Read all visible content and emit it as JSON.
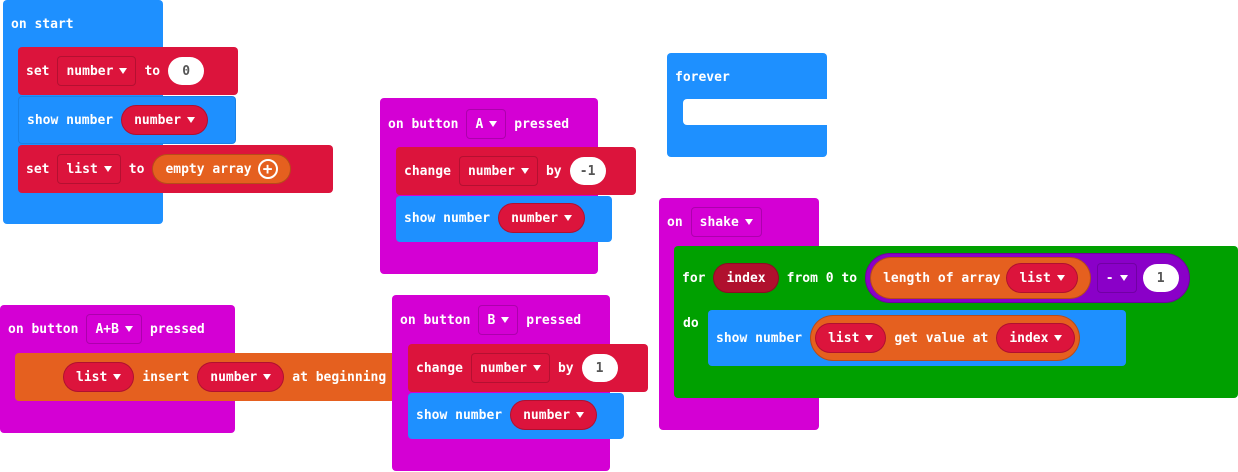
{
  "on_start": {
    "hat": "on start",
    "set1": {
      "kw": "set",
      "var": "number",
      "to": "to",
      "value": "0"
    },
    "show": {
      "kw": "show number",
      "var": "number"
    },
    "set2": {
      "kw": "set",
      "var": "list",
      "to": "to",
      "value": "empty array"
    }
  },
  "button_a": {
    "on": "on button",
    "btn": "A",
    "pressed": "pressed",
    "change": {
      "kw": "change",
      "var": "number",
      "by": "by",
      "value": "-1"
    },
    "show": {
      "kw": "show number",
      "var": "number"
    }
  },
  "forever": {
    "hat": "forever"
  },
  "shake": {
    "on": "on",
    "event": "shake",
    "for_kw": "for",
    "index": "index",
    "from": "from 0 to",
    "length": "length of array",
    "list": "list",
    "op": "-",
    "minus_value": "1",
    "do": "do",
    "show": {
      "kw": "show number",
      "list": "list",
      "get": "get value at",
      "index": "index"
    }
  },
  "button_ab": {
    "on": "on button",
    "btn": "A+B",
    "pressed": "pressed",
    "insert": {
      "list": "list",
      "kw": "insert",
      "var": "number",
      "tail": "at beginning"
    }
  },
  "button_b": {
    "on": "on button",
    "btn": "B",
    "pressed": "pressed",
    "change": {
      "kw": "change",
      "var": "number",
      "by": "by",
      "value": "1"
    },
    "show": {
      "kw": "show number",
      "var": "number"
    }
  },
  "colors": {
    "basic": "#1e90ff",
    "variables": "#dc143c",
    "input": "#d400d4",
    "arrays": "#e5601f",
    "loops": "#00a000",
    "math": "#8a00c8"
  }
}
